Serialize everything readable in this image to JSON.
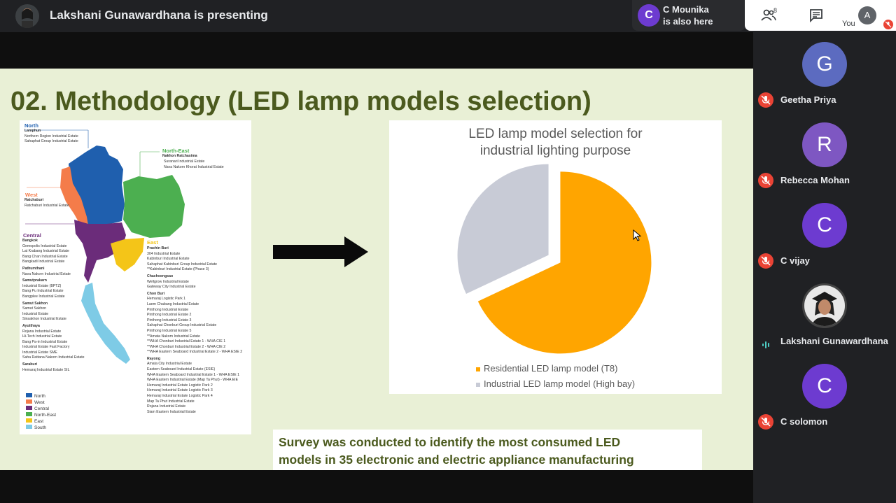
{
  "meet": {
    "presenting_text": "Lakshani Gunawardhana is presenting",
    "also_here": {
      "initial": "C",
      "name": "C Mounika",
      "sub": "is also here",
      "color": "#6d3bd0"
    },
    "toolbar": {
      "people_count": "8",
      "you_label": "You",
      "you_initial": "A",
      "icons": [
        "people-icon",
        "chat-icon",
        "mic-off-icon"
      ]
    },
    "participants": [
      {
        "initial": "G",
        "name": "Geetha Priya",
        "color": "#5c6bc0",
        "muted": true
      },
      {
        "initial": "R",
        "name": "Rebecca Mohan",
        "color": "#7e57c2",
        "muted": true
      },
      {
        "initial": "C",
        "name": "C vijay",
        "color": "#6d3bd0",
        "muted": true
      },
      {
        "initial": "",
        "name": "Lakshani Gunawardhana",
        "color": "#5f6368",
        "muted": false
      },
      {
        "initial": "C",
        "name": "C solomon",
        "color": "#6d3bd0",
        "muted": true
      }
    ]
  },
  "slide": {
    "title": "02. Methodology (LED lamp models selection)",
    "survey_line1": "Survey was conducted to identify the most consumed LED",
    "survey_line2": "models in 35 electronic and electric appliance manufacturing",
    "map": {
      "north": {
        "title": "North",
        "province": "Lamphun",
        "items": [
          "Northern Region Industrial Estate",
          "Sahaphat Group Industrial Estate"
        ]
      },
      "northeast": {
        "title": "North-East",
        "province": "Nakhon Ratchasima",
        "items": [
          "Suranari Industrial Estate",
          "Nava Nakorn Khorat Industrial Estate"
        ]
      },
      "west": {
        "title": "West",
        "province": "Ratchaburi",
        "items": [
          "Ratchaburi Industrial Estate"
        ]
      },
      "central": {
        "title": "Central",
        "groups": [
          {
            "province": "Bangkok",
            "items": [
              "Gemopolis Industrial Estate",
              "Lat Krabang Industrial Estate",
              "Bang Chan Industrial Estate",
              "Bangkadi Industrial Estate"
            ]
          },
          {
            "province": "Pathumthani",
            "items": [
              "Nava Nakorn Industrial Estate"
            ]
          },
          {
            "province": "Samutprakarn",
            "items": [
              "Industrial Estate (BPTZ)",
              "Bang Pu Industrial Estate",
              "Bangplee Industrial Estate"
            ]
          },
          {
            "province": "Samut Sakhon",
            "items": [
              "Samut Sakhon",
              "Industrial Estate",
              "Sinsakhon Industrial Estate"
            ]
          },
          {
            "province": "Ayutthaya",
            "items": [
              "Rojana Industrial Estate",
              "Hi-Tech Industrial Estate",
              "Bang Pa-in Industrial Estate",
              "Industrial Estate Fast Factory",
              "Industrial Estate SME",
              "Saha Rattana Nakorn Industrial Estate"
            ]
          },
          {
            "province": "Saraburi",
            "items": [
              "Hemaraj Industrial Estate SIL"
            ]
          }
        ]
      },
      "east": {
        "title": "East",
        "groups": [
          {
            "province": "Prachin Buri",
            "items": [
              "304 Industrial Estate",
              "Kabinburi Industrial Estate",
              "Sahaphat Kabinburi Group Industrial Estate",
              "**Kabinburi Industrial Estate (Phase 3)"
            ]
          },
          {
            "province": "Chachoengsao",
            "items": [
              "Wellgrow Industrial Estate",
              "Gateway City Industrial Estate"
            ]
          },
          {
            "province": "Chon Buri",
            "items": [
              "Hemaraj Logistic Park 1",
              "Laem Chabang Industrial Estate",
              "Pinthong Industrial Estate",
              "Pinthong Industrial Estate 2",
              "Pinthong Industrial Estate 3",
              "Sahaphat Chonburi Group Industrial Estate",
              "Pinthong Industrial Estate 5",
              "**Amata Nakorn Industrial Estate",
              "**WHA Chonburi Industrial Estate 1 - WHA CIE 1",
              "**WHA Chonburi Industrial Estate 2 - WHA CIE 2",
              "**WHA Eastern Seaboard Industrial Estate 2 - WHA ESIE 2"
            ]
          },
          {
            "province": "Rayong",
            "items": [
              "Amata City Industrial Estate",
              "Eastern Seaboard Industrial Estate (ESIE)",
              "WHA Eastern Seaboard Industrial Estate 1 - WHA ESIE 1",
              "WHA Eastern Industrial Estate (Map Ta Phut) - WHA EIE",
              "Hemaraj Industrial Estate Logistic Park 2",
              "Hemaraj Industrial Estate Logistic Park 3",
              "Hemaraj Industrial Estate Logistic Park 4",
              "Map Ta Phut Industrial Estate",
              "Rojana Industrial Estate",
              "Siam Eastern Industrial Estate"
            ]
          }
        ]
      },
      "legend": [
        "North",
        "West",
        "Central",
        "North-East",
        "East",
        "South"
      ],
      "colors": {
        "north": "#1f5fae",
        "northeast": "#4caf50",
        "west": "#f47c4a",
        "central": "#6b2c7a",
        "east": "#f4c518",
        "south": "#7ecbe6"
      }
    }
  },
  "chart_data": {
    "type": "pie",
    "title": "LED lamp model selection for industrial lighting purpose",
    "labels": [
      "Residential LED lamp model (T8)",
      "Industrial LED lamp model (High bay)"
    ],
    "values": [
      68,
      32
    ],
    "colors": [
      "#ffa500",
      "#c8cbd6"
    ],
    "exploded": true
  }
}
